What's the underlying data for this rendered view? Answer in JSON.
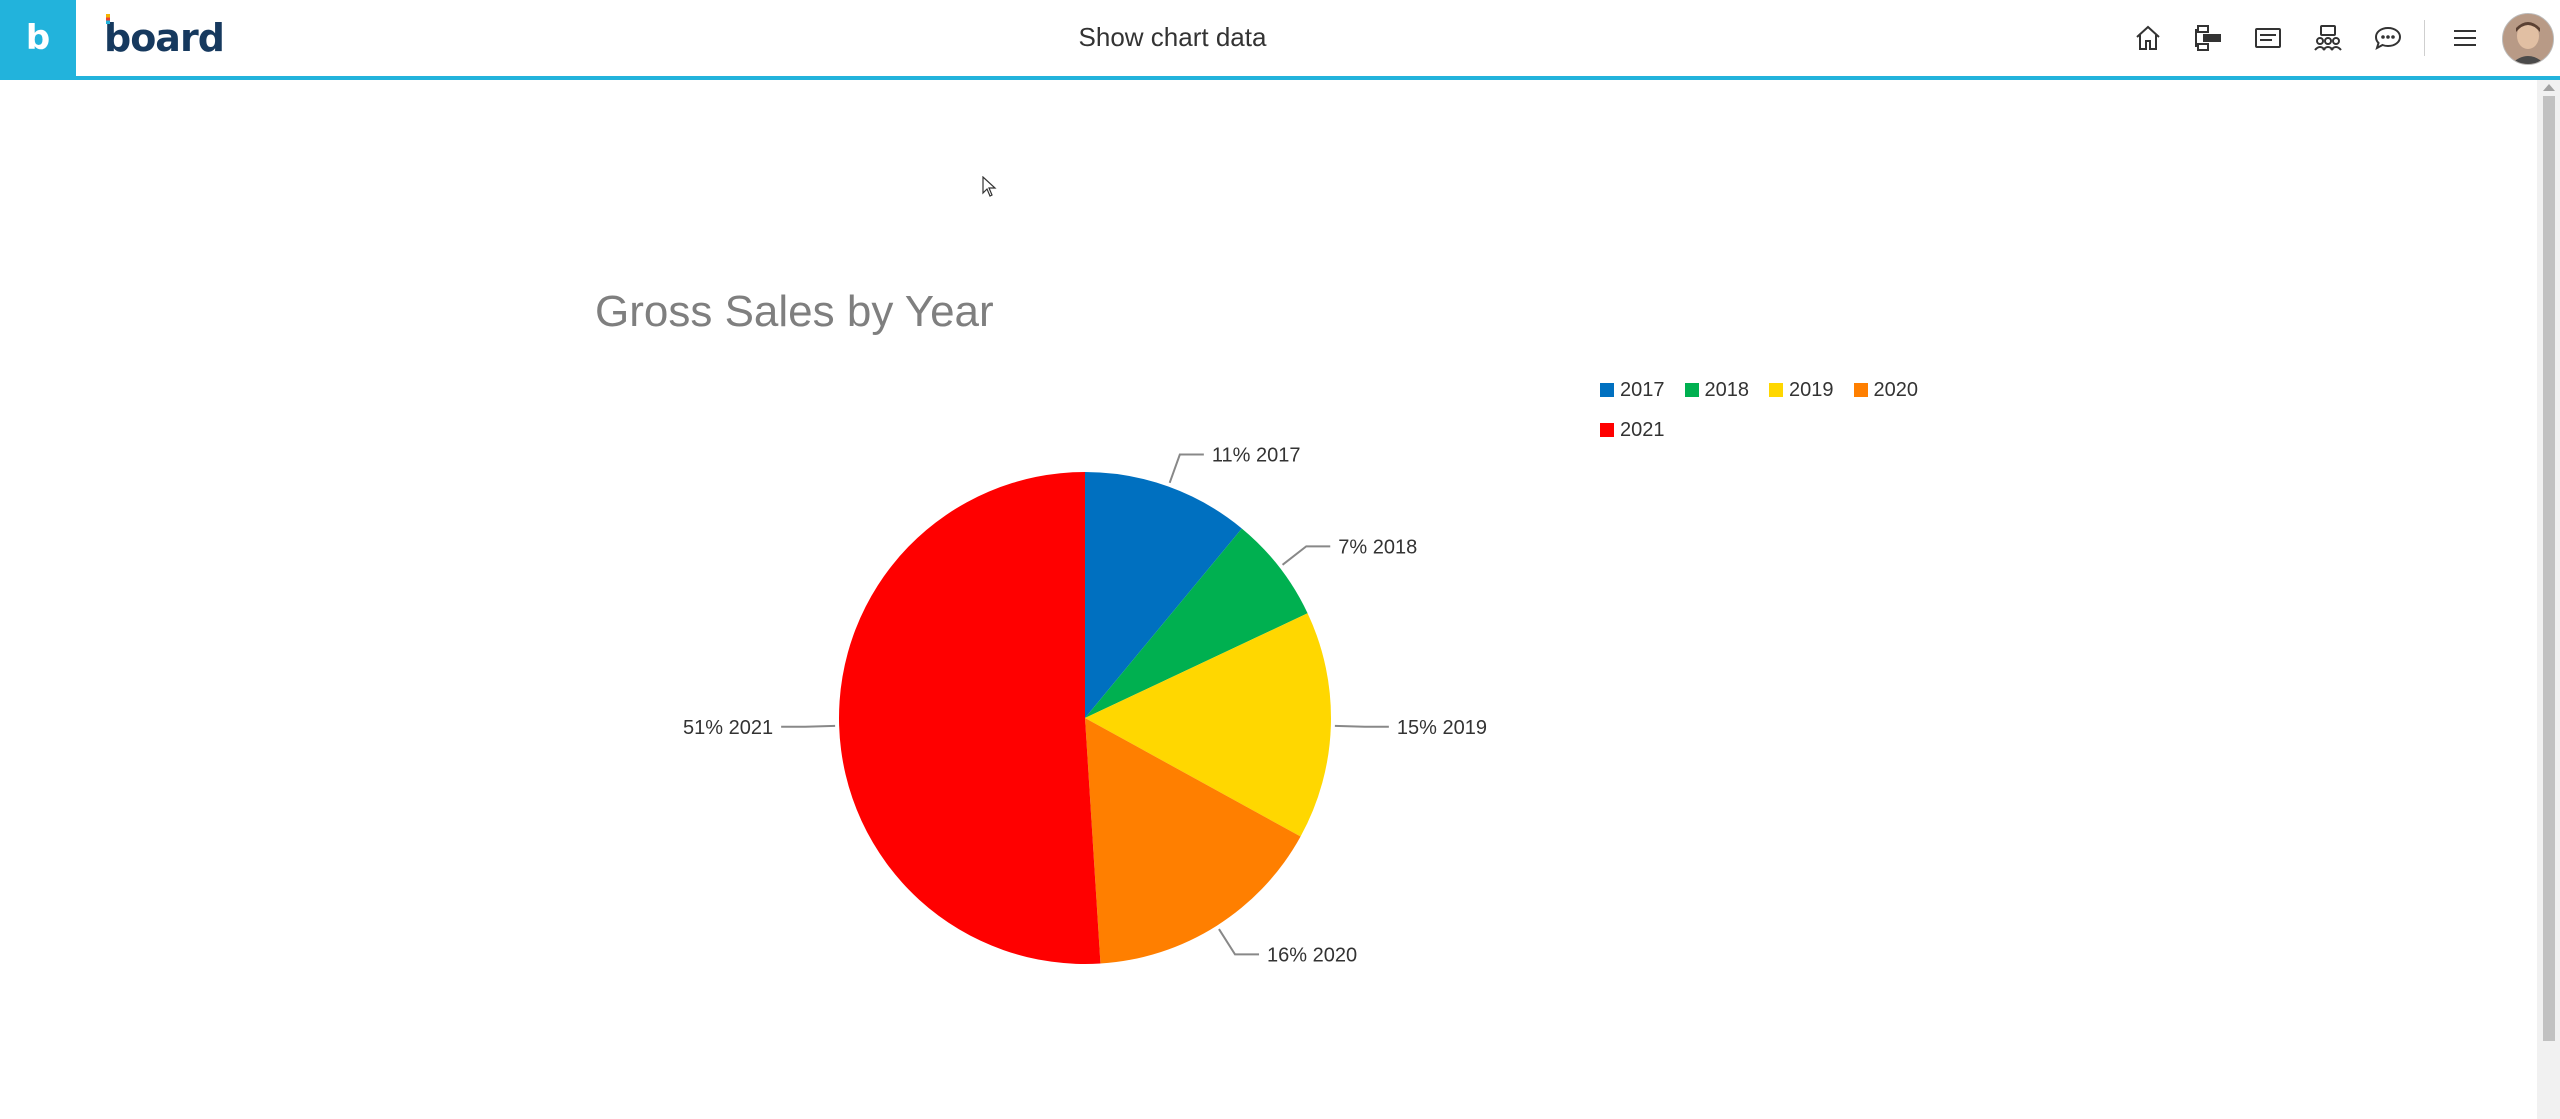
{
  "header": {
    "title": "Show chart data",
    "brand_initial": "b",
    "brand_name": "board",
    "icons": [
      "home-icon",
      "hierarchy-icon",
      "message-card-icon",
      "team-icon",
      "chat-icon",
      "menu-icon"
    ]
  },
  "colors": {
    "accent": "#22b3dc",
    "brand_text": "#16395e",
    "series": [
      "#0070c0",
      "#00b050",
      "#ffd700",
      "#ff7f00",
      "#ff0000"
    ]
  },
  "chart_data": {
    "type": "pie",
    "title": "Gross Sales by Year",
    "categories": [
      "2017",
      "2018",
      "2019",
      "2020",
      "2021"
    ],
    "values": [
      11,
      7,
      15,
      16,
      51
    ],
    "labels": [
      "11% 2017",
      "7% 2018",
      "15% 2019",
      "16% 2020",
      "51% 2021"
    ],
    "legend_position": "top-right",
    "start_angle": "top",
    "direction": "clockwise"
  }
}
